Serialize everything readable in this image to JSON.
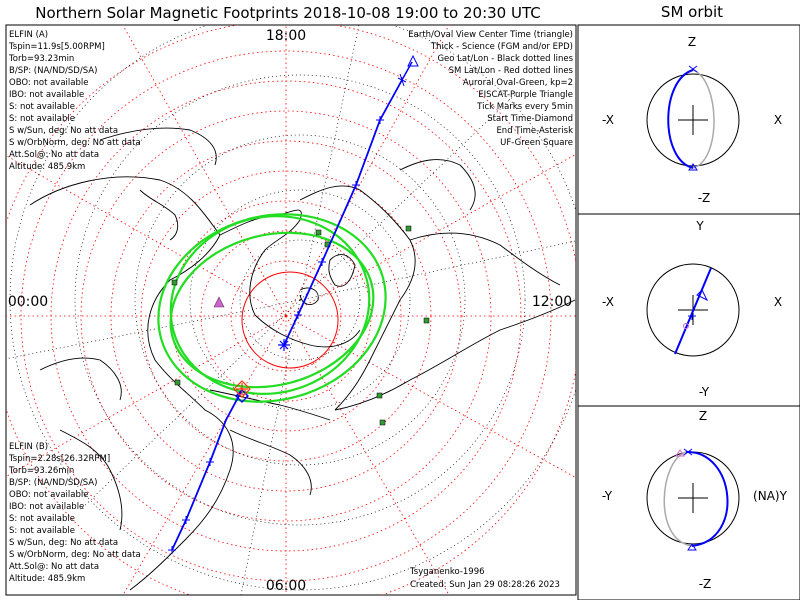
{
  "title": "Northern Solar Magnetic Footprints 2018-10-08 19:00 to 20:30 UTC",
  "orbit_title": "SM orbit",
  "map": {
    "local_time_labels": {
      "top": "18:00",
      "left": "00:00",
      "right": "12:00",
      "bottom": "06:00"
    },
    "legend": [
      {
        "text": "Earth/Oval View Center Time (triangle)",
        "color": "#000000"
      },
      {
        "text": "Thick - Science (FGM and/or EPD)",
        "color": "#000000"
      },
      {
        "text": "Geo Lat/Lon - Black dotted lines",
        "color": "#000000"
      },
      {
        "text": "SM Lat/Lon - Red dotted lines",
        "color": "#ff0000"
      },
      {
        "text": "Auroral Oval-Green, kp=2",
        "color": "#22dd22"
      },
      {
        "text": "EISCAT-Purple Triangle",
        "color": "#dd44dd"
      },
      {
        "text": "Tick Marks every 5min",
        "color": "#000000"
      },
      {
        "text": "Start Time-Diamond",
        "color": "#000000"
      },
      {
        "text": "End Time-Asterisk",
        "color": "#000000"
      },
      {
        "text": "UF-Green Square",
        "color": "#22aa22"
      }
    ],
    "elfin_a": {
      "name": "ELFIN (A)",
      "color": "#0000ff",
      "lines": [
        "Tspin=11.9s[5.00RPM]",
        "Torb=93.23min",
        "B/SP: (NA/ND/SD/SA)",
        "OBO: not available",
        "IBO: not available",
        "S: not available",
        "S: not available",
        "S w/Sun, deg: No att data",
        "S w/OrbNorm, deg: No att data",
        "Att.Sol@: No att data",
        "Altitude: 485.9km"
      ]
    },
    "elfin_b": {
      "name": "ELFIN (B)",
      "color": "#ff3300",
      "lines": [
        "Tspin=2.28s[26.32RPM]",
        "Torb=93.26min",
        "B/SP: (NA/ND/SD/SA)",
        "OBO: not available",
        "IBO: not available",
        "S: not available",
        "S: not available",
        "S w/Sun, deg: No att data",
        "S w/OrbNorm, deg: No att data",
        "Att.Sol@: No att data",
        "Altitude: 485.9km"
      ]
    },
    "model": "Tsyganenko-1996",
    "created": "Created: Sun Jan 29 08:28:26 2023"
  },
  "orbit_panels": [
    {
      "name": "xz",
      "top": "Z",
      "bottom": "-Z",
      "left": "-X",
      "right": "X"
    },
    {
      "name": "xy",
      "top": "Y",
      "bottom": "-Y",
      "left": "-X",
      "right": "X"
    },
    {
      "name": "yz",
      "top": "Z",
      "bottom": "-Z",
      "left": "-Y",
      "right": "(NA)Y"
    }
  ],
  "colors": {
    "track": "#0000ff",
    "sm_grid": "#ff0000",
    "oval": "#22dd22",
    "uf_square": "#339933",
    "eiscat": "#cc66cc"
  }
}
